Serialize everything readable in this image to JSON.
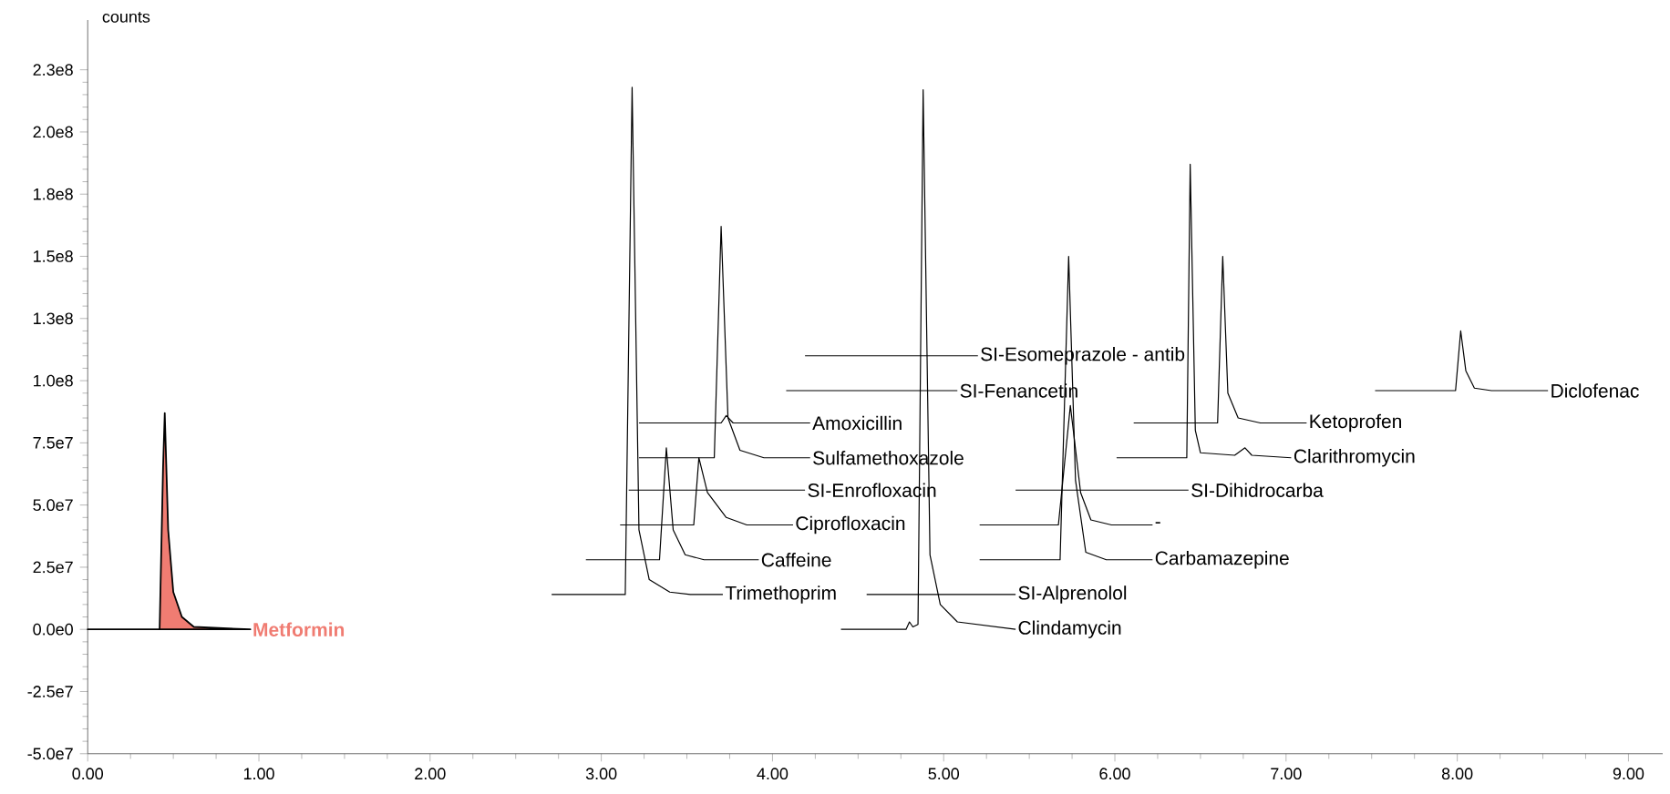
{
  "chart_data": {
    "type": "line",
    "ylabel": "counts",
    "xlim": [
      0,
      9.2
    ],
    "ylim": [
      -50000000,
      245000000
    ],
    "xticks": [
      {
        "value": 0,
        "label": "0.00"
      },
      {
        "value": 1,
        "label": "1.00"
      },
      {
        "value": 2,
        "label": "2.00"
      },
      {
        "value": 3,
        "label": "3.00"
      },
      {
        "value": 4,
        "label": "4.00"
      },
      {
        "value": 5,
        "label": "5.00"
      },
      {
        "value": 6,
        "label": "6.00"
      },
      {
        "value": 7,
        "label": "7.00"
      },
      {
        "value": 8,
        "label": "8.00"
      },
      {
        "value": 9,
        "label": "9.00"
      }
    ],
    "yticks": [
      {
        "value": -50000000,
        "label": "-5.0e7"
      },
      {
        "value": -25000000,
        "label": "-2.5e7"
      },
      {
        "value": 0,
        "label": "0.0e0"
      },
      {
        "value": 25000000,
        "label": "2.5e7"
      },
      {
        "value": 50000000,
        "label": "5.0e7"
      },
      {
        "value": 75000000,
        "label": "7.5e7"
      },
      {
        "value": 100000000,
        "label": "1.0e8"
      },
      {
        "value": 125000000,
        "label": "1.3e8"
      },
      {
        "value": 150000000,
        "label": "1.5e8"
      },
      {
        "value": 175000000,
        "label": "1.8e8"
      },
      {
        "value": 200000000,
        "label": "2.0e8"
      },
      {
        "value": 225000000,
        "label": "2.3e8"
      }
    ],
    "grid": false,
    "series": [
      {
        "name": "Metformin",
        "type": "area",
        "color": "#f07c72",
        "x": [
          0,
          0.42,
          0.44,
          0.45,
          0.47,
          0.5,
          0.55,
          0.62,
          0.95
        ],
        "values": [
          0,
          0,
          65000000,
          87000000,
          40000000,
          15000000,
          5000000,
          1000000,
          0
        ]
      },
      {
        "name": "Trimethoprim",
        "color": "#000000",
        "x": [
          2.71,
          3.14,
          3.18,
          3.22,
          3.28,
          3.4,
          3.52,
          3.71
        ],
        "values": [
          14000000,
          14000000,
          218000000,
          40000000,
          20000000,
          15000000,
          14000000,
          14000000
        ]
      },
      {
        "name": "Caffeine",
        "color": "#000000",
        "x": [
          2.91,
          3.34,
          3.38,
          3.42,
          3.49,
          3.6,
          3.92
        ],
        "values": [
          28000000,
          28000000,
          73000000,
          40000000,
          30000000,
          28000000,
          28000000
        ]
      },
      {
        "name": "Ciprofloxacin",
        "color": "#000000",
        "x": [
          3.11,
          3.54,
          3.57,
          3.62,
          3.73,
          3.85,
          4.12
        ],
        "values": [
          42000000,
          42000000,
          69000000,
          55000000,
          45000000,
          42000000,
          42000000
        ]
      },
      {
        "name": "SI-Enrofloxacin",
        "color": "#000000",
        "x": [
          3.16,
          4.19
        ],
        "values": [
          56000000,
          56000000
        ]
      },
      {
        "name": "Sulfamethoxazole",
        "color": "#000000",
        "x": [
          3.22,
          3.66,
          3.7,
          3.74,
          3.81,
          3.95,
          4.22
        ],
        "values": [
          69000000,
          69000000,
          162000000,
          85000000,
          72000000,
          69000000,
          69000000
        ]
      },
      {
        "name": "Amoxicillin",
        "color": "#000000",
        "x": [
          3.22,
          3.7,
          3.73,
          3.77,
          4.22
        ],
        "values": [
          83000000,
          83000000,
          86000000,
          83000000,
          83000000
        ]
      },
      {
        "name": "SI-Fenancetin",
        "color": "#000000",
        "x": [
          4.08,
          5.08
        ],
        "values": [
          96000000,
          96000000
        ]
      },
      {
        "name": "SI-Esomeprazole - antib",
        "color": "#000000",
        "x": [
          4.19,
          5.2
        ],
        "values": [
          110000000,
          110000000
        ]
      },
      {
        "name": "SI-Alprenolol",
        "color": "#000000",
        "x": [
          4.55,
          5.42
        ],
        "values": [
          14000000,
          14000000
        ]
      },
      {
        "name": "Clindamycin",
        "color": "#000000",
        "x": [
          4.4,
          4.78,
          4.8,
          4.82,
          4.85,
          4.88,
          4.92,
          4.98,
          5.08,
          5.42
        ],
        "values": [
          0,
          0,
          3000000,
          1000000,
          2000000,
          217000000,
          30000000,
          10000000,
          3000000,
          0
        ]
      },
      {
        "name": "Carbamazepine",
        "color": "#000000",
        "x": [
          5.21,
          5.68,
          5.73,
          5.77,
          5.83,
          5.95,
          6.22
        ],
        "values": [
          28000000,
          28000000,
          150000000,
          60000000,
          31000000,
          28000000,
          28000000
        ]
      },
      {
        "name": "-",
        "color": "#000000",
        "x": [
          5.21,
          5.67,
          5.74,
          5.8,
          5.86,
          5.98,
          6.22
        ],
        "values": [
          42000000,
          42000000,
          90000000,
          55000000,
          44000000,
          42000000,
          42000000
        ]
      },
      {
        "name": "SI-Dihidrocarba",
        "color": "#000000",
        "x": [
          5.42,
          6.43
        ],
        "values": [
          56000000,
          56000000
        ]
      },
      {
        "name": "Clarithromycin",
        "color": "#000000",
        "x": [
          6.01,
          6.42,
          6.44,
          6.47,
          6.5,
          6.7,
          6.76,
          6.8,
          7.03
        ],
        "values": [
          69000000,
          69000000,
          187000000,
          80000000,
          71000000,
          70000000,
          73000000,
          70000000,
          69000000
        ]
      },
      {
        "name": "Ketoprofen",
        "color": "#000000",
        "x": [
          6.11,
          6.6,
          6.63,
          6.66,
          6.72,
          6.85,
          7.12
        ],
        "values": [
          83000000,
          83000000,
          150000000,
          95000000,
          85000000,
          83000000,
          83000000
        ]
      },
      {
        "name": "Diclofenac",
        "color": "#000000",
        "x": [
          7.52,
          7.99,
          8.02,
          8.05,
          8.1,
          8.2,
          8.53
        ],
        "values": [
          96000000,
          96000000,
          120000000,
          104000000,
          97000000,
          96000000,
          96000000
        ]
      }
    ]
  }
}
